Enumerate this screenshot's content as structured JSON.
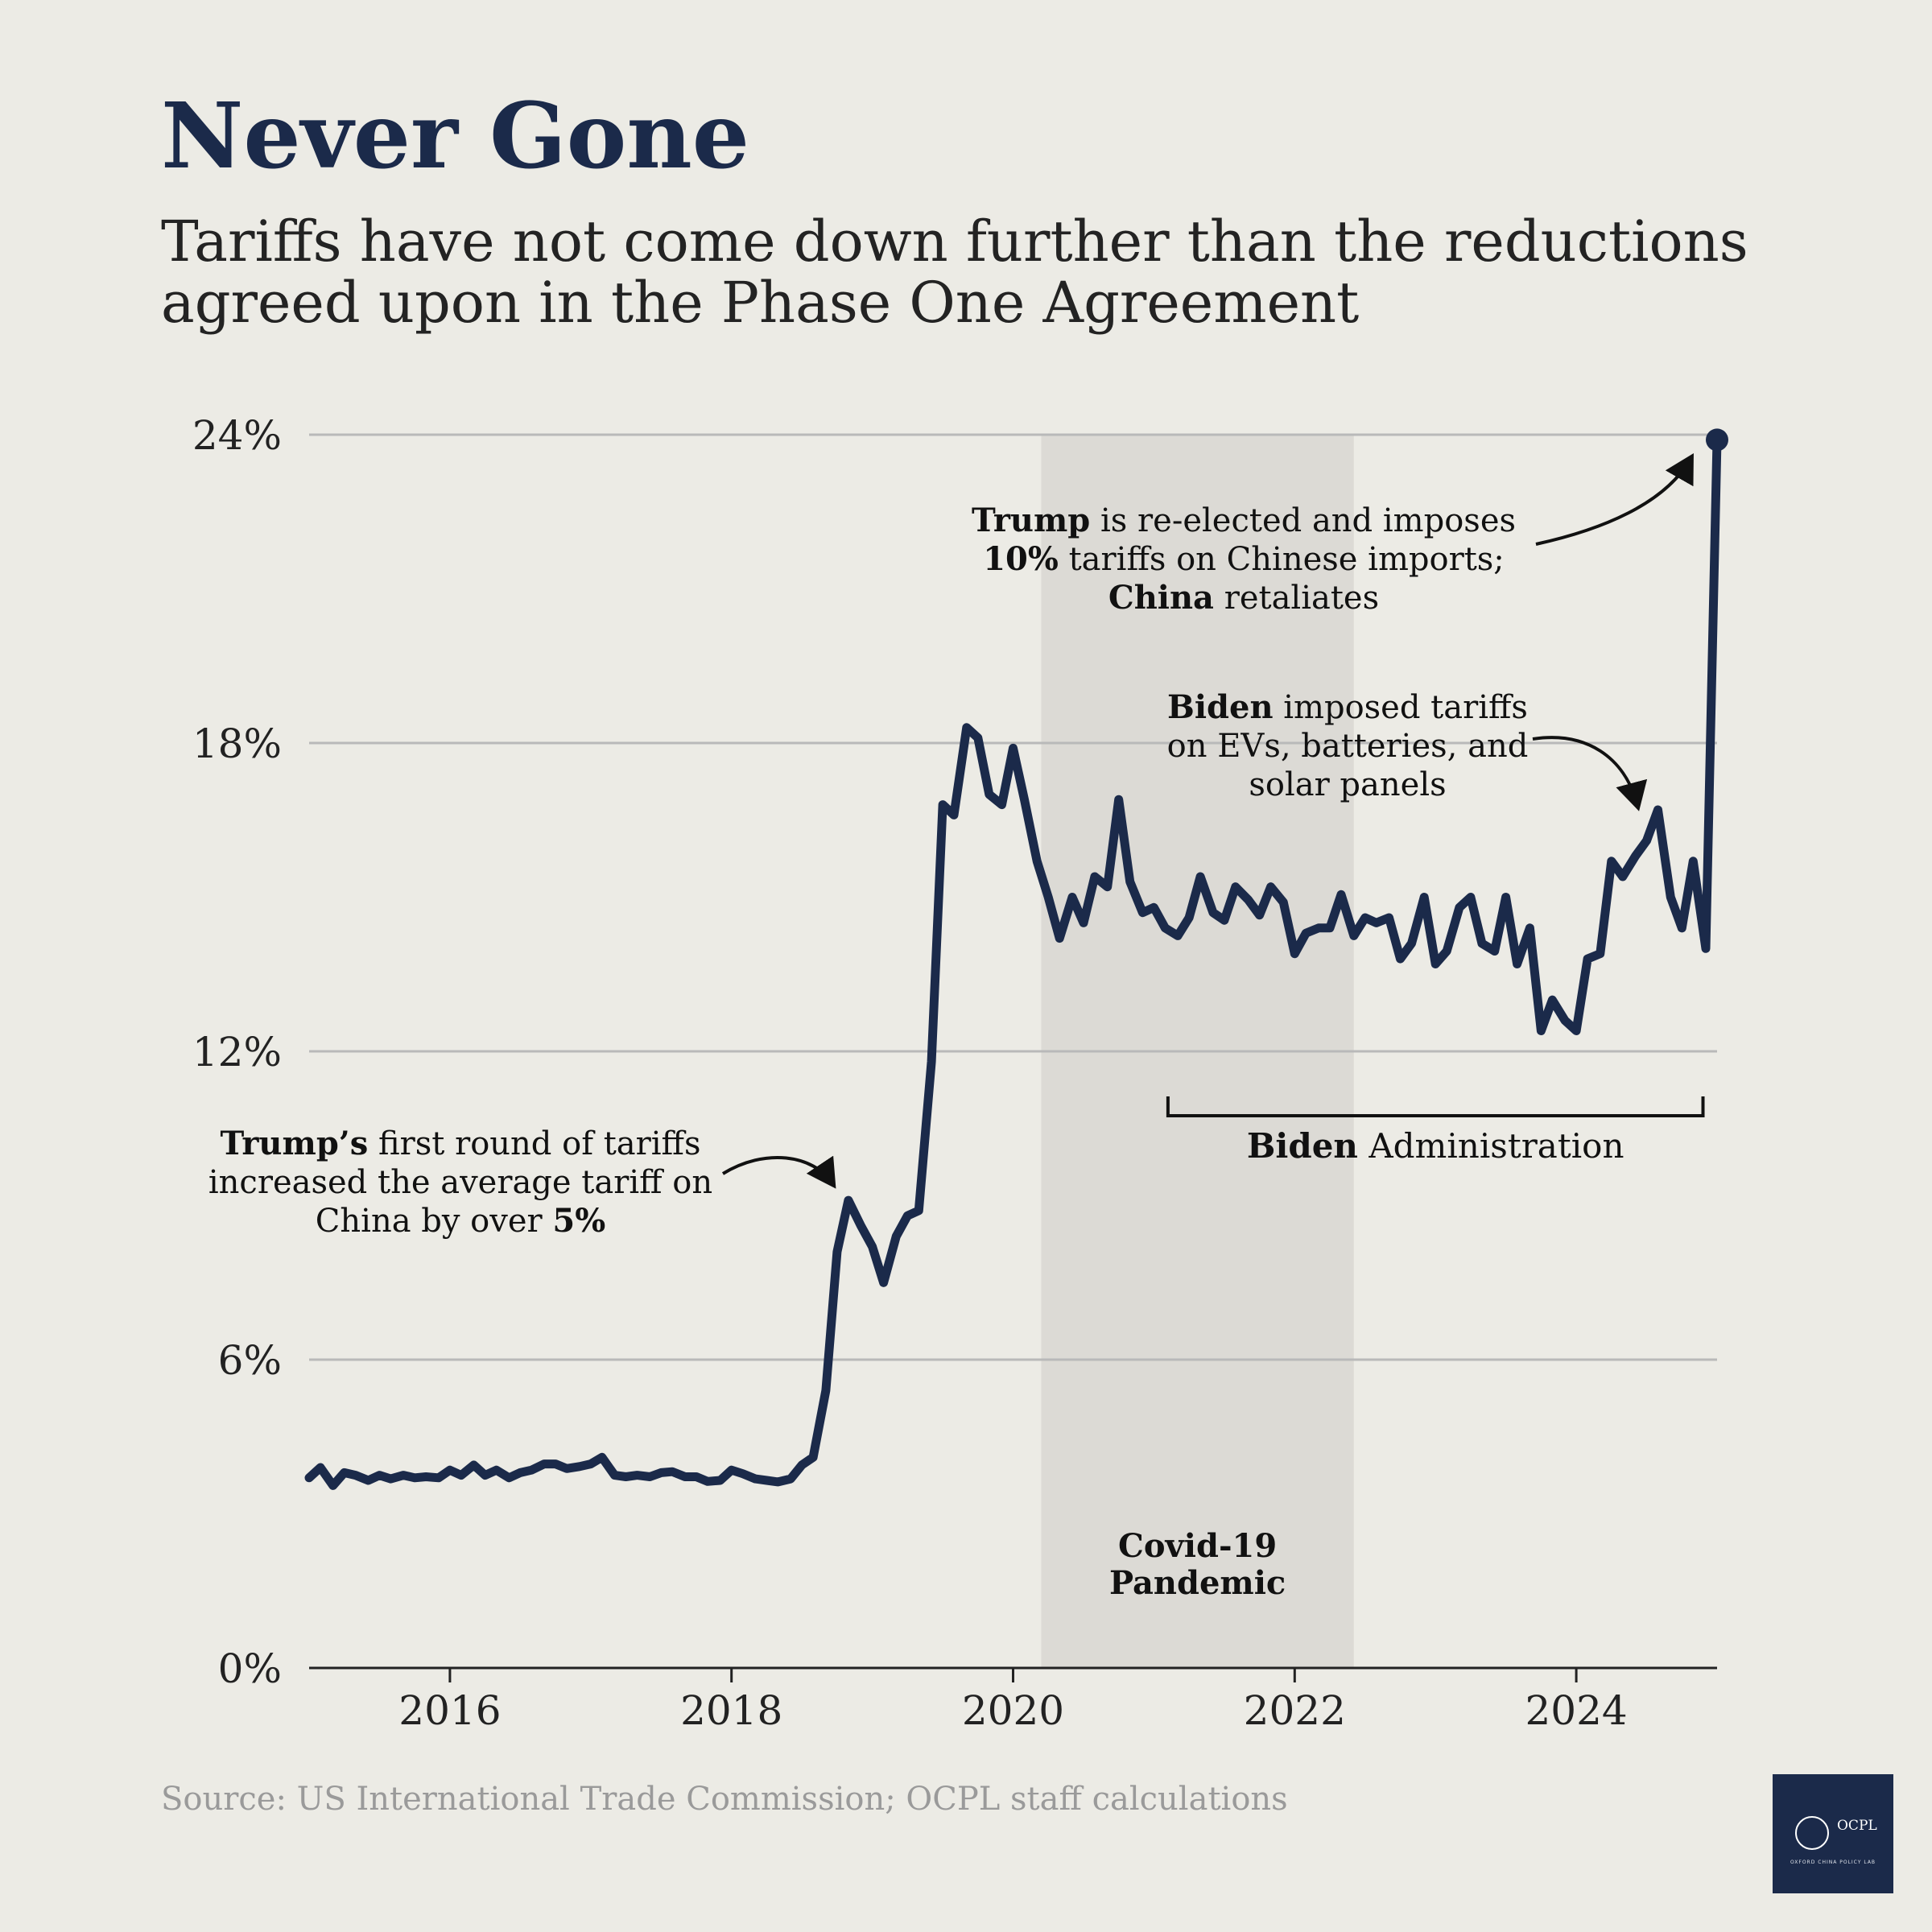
{
  "title": "Never Gone",
  "subtitle": "Tariffs have not come down further than the reductions agreed upon in the Phase One Agreement",
  "source": "Source: US International Trade Commission; OCPL staff calculations",
  "logo": {
    "text": "OCPL",
    "tagline": "OXFORD CHINA POLICY LAB"
  },
  "colors": {
    "line": "#1b2a4a",
    "background": "#ecebe5",
    "shade": "#dcdad5",
    "grid": "#b9b9b9"
  },
  "chart_data": {
    "type": "line",
    "ylim": [
      0,
      24
    ],
    "xlim": [
      2015.0,
      2025.0
    ],
    "y_ticks": [
      {
        "value": 0,
        "label": "0%"
      },
      {
        "value": 6,
        "label": "6%"
      },
      {
        "value": 12,
        "label": "12%"
      },
      {
        "value": 18,
        "label": "18%"
      },
      {
        "value": 24,
        "label": "24%"
      }
    ],
    "x_ticks": [
      {
        "value": 2016,
        "label": "2016"
      },
      {
        "value": 2018,
        "label": "2018"
      },
      {
        "value": 2020,
        "label": "2020"
      },
      {
        "value": 2022,
        "label": "2022"
      },
      {
        "value": 2024,
        "label": "2024"
      }
    ],
    "grid": true,
    "shaded_region": {
      "start": 2020.2,
      "end": 2022.42,
      "label_lines": [
        "Covid-19",
        "Pandemic"
      ]
    },
    "bracket": {
      "start": 2021.1,
      "end": 2024.9,
      "label_bold": "Biden",
      "label_rest": " Administration"
    },
    "series": [
      {
        "values": [
          [
            2015.0,
            3.7
          ],
          [
            2015.08,
            3.9
          ],
          [
            2015.17,
            3.55
          ],
          [
            2015.25,
            3.8
          ],
          [
            2015.33,
            3.75
          ],
          [
            2015.42,
            3.65
          ],
          [
            2015.5,
            3.75
          ],
          [
            2015.58,
            3.68
          ],
          [
            2015.67,
            3.75
          ],
          [
            2015.75,
            3.7
          ],
          [
            2015.83,
            3.72
          ],
          [
            2015.92,
            3.7
          ],
          [
            2016.0,
            3.85
          ],
          [
            2016.08,
            3.75
          ],
          [
            2016.17,
            3.95
          ],
          [
            2016.25,
            3.75
          ],
          [
            2016.33,
            3.85
          ],
          [
            2016.42,
            3.7
          ],
          [
            2016.5,
            3.8
          ],
          [
            2016.58,
            3.85
          ],
          [
            2016.67,
            3.97
          ],
          [
            2016.75,
            3.97
          ],
          [
            2016.83,
            3.88
          ],
          [
            2016.92,
            3.92
          ],
          [
            2017.0,
            3.97
          ],
          [
            2017.08,
            4.1
          ],
          [
            2017.17,
            3.75
          ],
          [
            2017.25,
            3.72
          ],
          [
            2017.33,
            3.75
          ],
          [
            2017.42,
            3.72
          ],
          [
            2017.5,
            3.8
          ],
          [
            2017.58,
            3.82
          ],
          [
            2017.67,
            3.72
          ],
          [
            2017.75,
            3.72
          ],
          [
            2017.83,
            3.63
          ],
          [
            2017.92,
            3.65
          ],
          [
            2018.0,
            3.85
          ],
          [
            2018.08,
            3.78
          ],
          [
            2018.17,
            3.68
          ],
          [
            2018.25,
            3.65
          ],
          [
            2018.33,
            3.62
          ],
          [
            2018.42,
            3.68
          ],
          [
            2018.5,
            3.95
          ],
          [
            2018.58,
            4.1
          ],
          [
            2018.67,
            5.4
          ],
          [
            2018.75,
            8.1
          ],
          [
            2018.83,
            9.1
          ],
          [
            2018.92,
            8.6
          ],
          [
            2019.0,
            8.2
          ],
          [
            2019.08,
            7.5
          ],
          [
            2019.17,
            8.4
          ],
          [
            2019.25,
            8.8
          ],
          [
            2019.33,
            8.9
          ],
          [
            2019.42,
            11.8
          ],
          [
            2019.5,
            16.8
          ],
          [
            2019.58,
            16.6
          ],
          [
            2019.67,
            18.3
          ],
          [
            2019.75,
            18.1
          ],
          [
            2019.83,
            17.0
          ],
          [
            2019.92,
            16.8
          ],
          [
            2020.0,
            17.9
          ],
          [
            2020.08,
            16.9
          ],
          [
            2020.17,
            15.7
          ],
          [
            2020.25,
            15.0
          ],
          [
            2020.33,
            14.2
          ],
          [
            2020.42,
            15.0
          ],
          [
            2020.5,
            14.5
          ],
          [
            2020.58,
            15.4
          ],
          [
            2020.67,
            15.2
          ],
          [
            2020.75,
            16.9
          ],
          [
            2020.83,
            15.3
          ],
          [
            2020.92,
            14.7
          ],
          [
            2021.0,
            14.8
          ],
          [
            2021.08,
            14.4
          ],
          [
            2021.17,
            14.25
          ],
          [
            2021.25,
            14.6
          ],
          [
            2021.33,
            15.4
          ],
          [
            2021.42,
            14.7
          ],
          [
            2021.5,
            14.55
          ],
          [
            2021.58,
            15.2
          ],
          [
            2021.67,
            14.95
          ],
          [
            2021.75,
            14.65
          ],
          [
            2021.83,
            15.2
          ],
          [
            2021.92,
            14.9
          ],
          [
            2022.0,
            13.9
          ],
          [
            2022.08,
            14.3
          ],
          [
            2022.17,
            14.4
          ],
          [
            2022.25,
            14.4
          ],
          [
            2022.33,
            15.05
          ],
          [
            2022.42,
            14.25
          ],
          [
            2022.5,
            14.6
          ],
          [
            2022.58,
            14.5
          ],
          [
            2022.67,
            14.6
          ],
          [
            2022.75,
            13.8
          ],
          [
            2022.83,
            14.1
          ],
          [
            2022.92,
            15.0
          ],
          [
            2023.0,
            13.7
          ],
          [
            2023.08,
            13.95
          ],
          [
            2023.17,
            14.8
          ],
          [
            2023.25,
            15.0
          ],
          [
            2023.33,
            14.1
          ],
          [
            2023.42,
            13.95
          ],
          [
            2023.5,
            15.0
          ],
          [
            2023.58,
            13.7
          ],
          [
            2023.67,
            14.4
          ],
          [
            2023.75,
            12.4
          ],
          [
            2023.83,
            13.0
          ],
          [
            2023.92,
            12.6
          ],
          [
            2024.0,
            12.4
          ],
          [
            2024.08,
            13.8
          ],
          [
            2024.17,
            13.9
          ],
          [
            2024.25,
            15.7
          ],
          [
            2024.33,
            15.4
          ],
          [
            2024.42,
            15.8
          ],
          [
            2024.5,
            16.1
          ],
          [
            2024.58,
            16.7
          ],
          [
            2024.67,
            15.0
          ],
          [
            2024.75,
            14.4
          ],
          [
            2024.83,
            15.7
          ],
          [
            2024.92,
            14.0
          ],
          [
            2025.0,
            23.9
          ]
        ]
      }
    ],
    "end_marker": [
      2025.0,
      23.9
    ],
    "annotations": [
      {
        "lines": [
          [
            "Trump",
            " is re-elected and imposes"
          ],
          [
            "10%",
            " tariffs on Chinese imports;"
          ],
          [
            "China",
            " retaliates"
          ]
        ]
      },
      {
        "lines": [
          [
            "Biden",
            " imposed tariffs"
          ],
          [
            "",
            "on EVs, batteries, and"
          ],
          [
            "",
            "solar panels"
          ]
        ]
      },
      {
        "lines": [
          [
            "Trump’s",
            " first round of tariffs"
          ],
          [
            "",
            "increased the average tariff on"
          ],
          [
            "",
            "China by over "
          ]
        ],
        "last_bold": "5%"
      }
    ]
  }
}
